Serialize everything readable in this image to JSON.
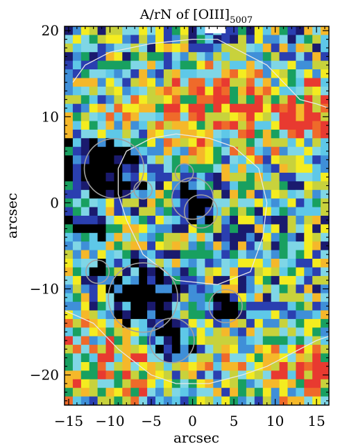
{
  "chart_data": {
    "type": "heatmap",
    "title_main": "A/rN of [OIII]",
    "title_sub": "5007",
    "xlabel": "arcsec",
    "ylabel": "arcsec",
    "xlim": [
      -15.5,
      16.5
    ],
    "ylim": [
      -23.5,
      20.5
    ],
    "xticks": [
      -15,
      -10,
      -5,
      0,
      5,
      10,
      15
    ],
    "yticks": [
      -20,
      -10,
      0,
      10,
      20
    ],
    "xtick_labels": [
      "−15",
      "−10",
      "−5",
      "0",
      "5",
      "10",
      "15"
    ],
    "ytick_labels": [
      "−20",
      "−10",
      "0",
      "10",
      "20"
    ],
    "color_scale": [
      "#000000",
      "#1a1a6e",
      "#2a3fb0",
      "#3f8fd8",
      "#5ec8e8",
      "#7fd6e6",
      "#18a060",
      "#c8d23c",
      "#f4ec20",
      "#f5b82a",
      "#ef6a2a",
      "#e83a30",
      "#f0d0c8"
    ],
    "grid": false,
    "regions": {
      "dark_core_circles": [
        {
          "x": -9.5,
          "y": 4.0,
          "r": 3.6
        },
        {
          "x": -6.0,
          "y": -11.0,
          "r": 4.2
        },
        {
          "x": -11.5,
          "y": -8.0,
          "r": 1.4
        },
        {
          "x": -6.0,
          "y": 1.5,
          "r": 1.1
        },
        {
          "x": -1.0,
          "y": 3.5,
          "r": 1.1
        },
        {
          "x": 0.0,
          "y": 0.5,
          "r": 2.5
        },
        {
          "x": 1.0,
          "y": -1.0,
          "r": 2.0
        },
        {
          "x": -2.5,
          "y": -16.0,
          "r": 2.7
        },
        {
          "x": 4.0,
          "y": -12.0,
          "r": 2.0
        }
      ],
      "contours": [
        [
          [
            -14.5,
            14
          ],
          [
            -13,
            16
          ],
          [
            -10,
            17.5
          ],
          [
            -5,
            18.5
          ],
          [
            0,
            19
          ],
          [
            3,
            19
          ],
          [
            6,
            17.5
          ],
          [
            9,
            16
          ],
          [
            11,
            14
          ],
          [
            13,
            12
          ],
          [
            15,
            11.5
          ],
          [
            16.5,
            11
          ]
        ],
        [
          [
            -9,
            4
          ],
          [
            -8,
            6
          ],
          [
            -5,
            7.5
          ],
          [
            -2,
            8
          ],
          [
            2,
            7.5
          ],
          [
            5,
            6.5
          ],
          [
            8,
            4
          ],
          [
            9,
            0
          ],
          [
            8.5,
            -4
          ],
          [
            7,
            -8
          ],
          [
            3,
            -9.5
          ],
          [
            -2,
            -9
          ],
          [
            -6,
            -6
          ],
          [
            -8,
            -2
          ],
          [
            -9,
            1
          ],
          [
            -9,
            4
          ]
        ],
        [
          [
            -15.5,
            -12.5
          ],
          [
            -12,
            -14
          ],
          [
            -9,
            -17
          ],
          [
            -5,
            -20
          ],
          [
            -2,
            -21
          ],
          [
            2,
            -21
          ],
          [
            6,
            -20
          ],
          [
            9,
            -19
          ],
          [
            12,
            -17.5
          ],
          [
            15,
            -16
          ],
          [
            16.5,
            -15.5
          ]
        ]
      ]
    }
  }
}
